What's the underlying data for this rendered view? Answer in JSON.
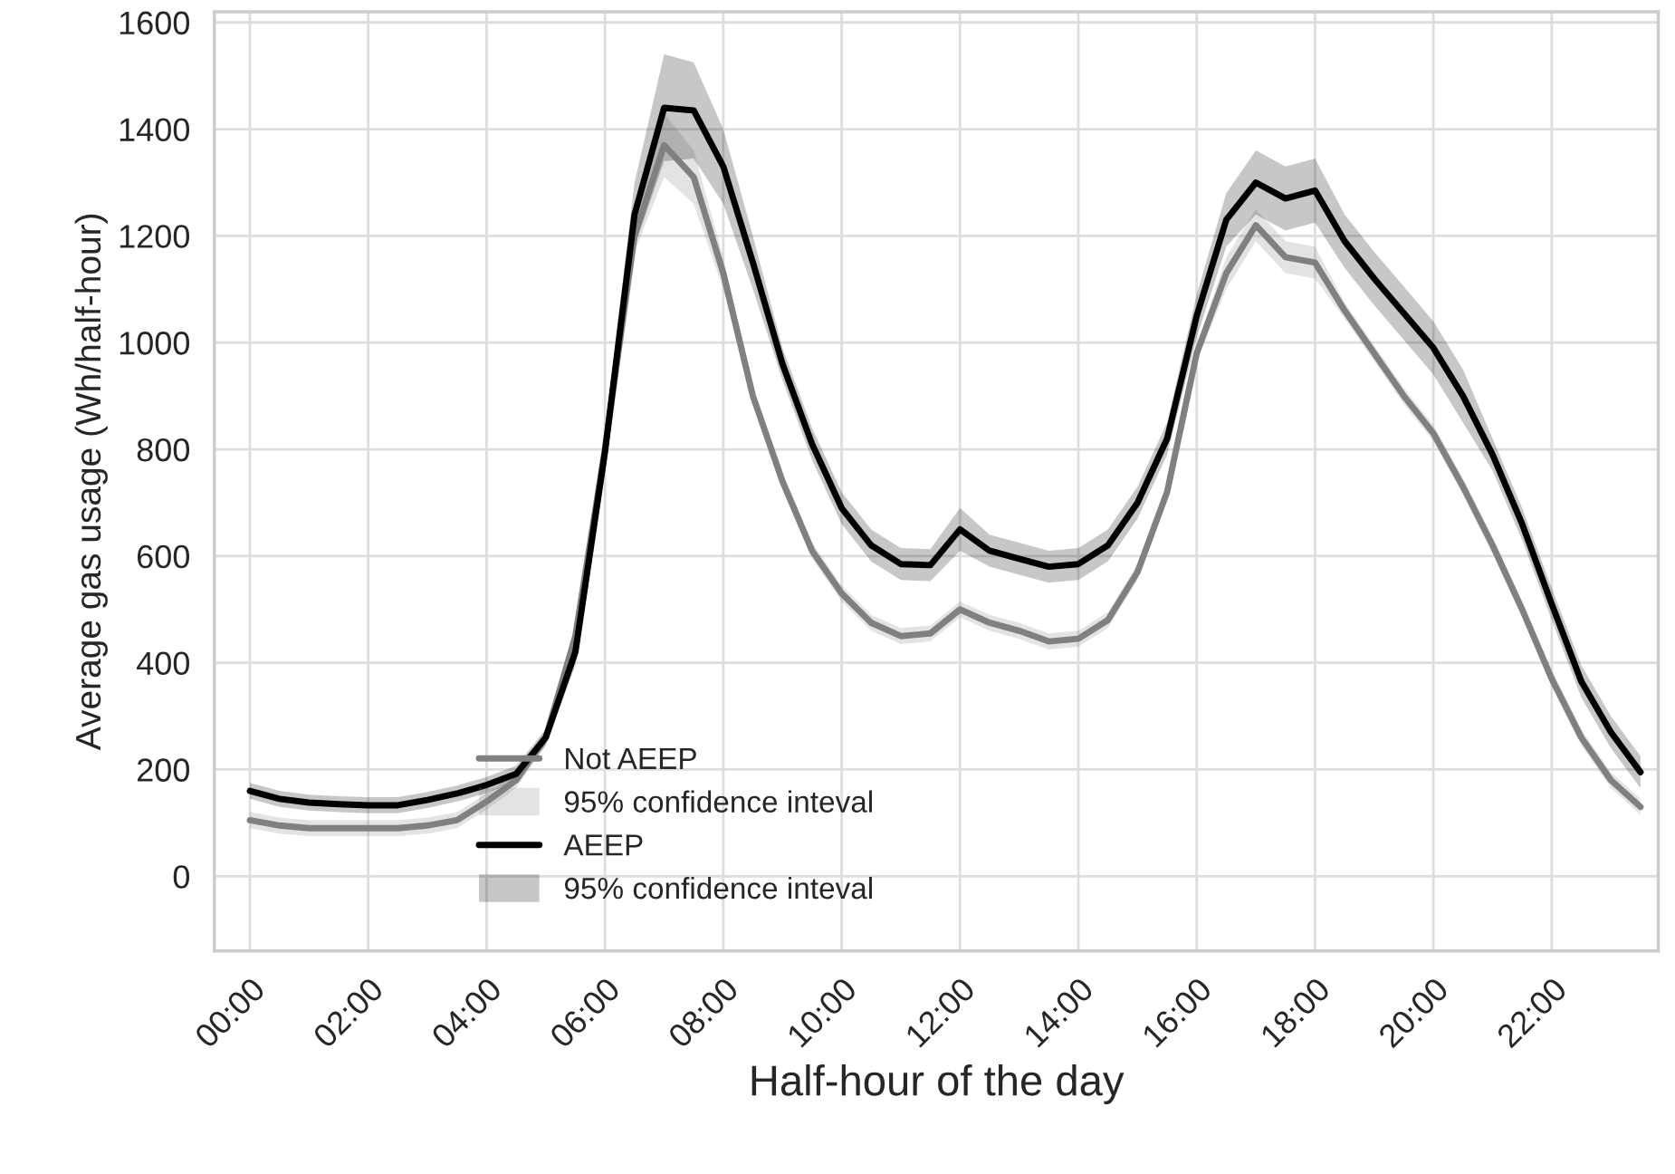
{
  "chart_data": {
    "type": "line",
    "xlabel": "Half-hour of the day",
    "ylabel": "Average gas usage (Wh/half-hour)",
    "annotations": [
      "95% confidence inteval",
      "95% confidence inteval"
    ],
    "x": [
      0,
      0.5,
      1,
      1.5,
      2,
      2.5,
      3,
      3.5,
      4,
      4.5,
      5,
      5.5,
      6,
      6.5,
      7,
      7.5,
      8,
      8.5,
      9,
      9.5,
      10,
      10.5,
      11,
      11.5,
      12,
      12.5,
      13,
      13.5,
      14,
      14.5,
      15,
      15.5,
      16,
      16.5,
      17,
      17.5,
      18,
      18.5,
      19,
      19.5,
      20,
      20.5,
      21,
      21.5,
      22,
      22.5,
      23,
      23.5
    ],
    "xlim": [
      -0.6,
      23.8
    ],
    "xticks": [
      {
        "value": 0,
        "label": "00:00"
      },
      {
        "value": 2,
        "label": "02:00"
      },
      {
        "value": 4,
        "label": "04:00"
      },
      {
        "value": 6,
        "label": "06:00"
      },
      {
        "value": 8,
        "label": "08:00"
      },
      {
        "value": 10,
        "label": "10:00"
      },
      {
        "value": 12,
        "label": "12:00"
      },
      {
        "value": 14,
        "label": "14:00"
      },
      {
        "value": 16,
        "label": "16:00"
      },
      {
        "value": 18,
        "label": "18:00"
      },
      {
        "value": 20,
        "label": "20:00"
      },
      {
        "value": 22,
        "label": "22:00"
      }
    ],
    "ylim": [
      -140,
      1620
    ],
    "yticks": [
      0,
      200,
      400,
      600,
      800,
      1000,
      1200,
      1400,
      1600
    ],
    "grid": true,
    "legend": "bottom",
    "line_style": "solid",
    "marker": "none",
    "series": [
      {
        "name": "Not AEEP",
        "color": "#808080",
        "values": [
          105,
          95,
          90,
          90,
          90,
          90,
          95,
          105,
          140,
          180,
          260,
          450,
          800,
          1200,
          1370,
          1310,
          1130,
          900,
          740,
          610,
          530,
          475,
          450,
          455,
          500,
          475,
          460,
          440,
          445,
          480,
          570,
          720,
          980,
          1130,
          1220,
          1160,
          1150,
          1060,
          980,
          900,
          830,
          730,
          620,
          500,
          370,
          260,
          180,
          130
        ],
        "lower": [
          90,
          80,
          75,
          75,
          75,
          75,
          80,
          90,
          125,
          165,
          245,
          435,
          785,
          1170,
          1310,
          1260,
          1100,
          885,
          725,
          595,
          515,
          460,
          435,
          440,
          485,
          460,
          445,
          425,
          430,
          465,
          555,
          705,
          965,
          1100,
          1190,
          1130,
          1120,
          1045,
          965,
          885,
          815,
          715,
          605,
          485,
          355,
          245,
          165,
          115
        ],
        "upper": [
          120,
          110,
          105,
          105,
          105,
          105,
          110,
          120,
          155,
          195,
          275,
          465,
          815,
          1230,
          1430,
          1360,
          1160,
          915,
          755,
          625,
          545,
          490,
          465,
          470,
          515,
          490,
          475,
          455,
          460,
          495,
          585,
          735,
          995,
          1160,
          1250,
          1190,
          1180,
          1075,
          995,
          915,
          845,
          745,
          635,
          515,
          385,
          275,
          195,
          145
        ]
      },
      {
        "name": "AEEP",
        "color": "#000000",
        "values": [
          160,
          145,
          138,
          135,
          133,
          133,
          143,
          155,
          171,
          192,
          260,
          420,
          795,
          1240,
          1440,
          1435,
          1330,
          1150,
          960,
          810,
          690,
          620,
          585,
          583,
          650,
          610,
          595,
          580,
          585,
          620,
          700,
          820,
          1050,
          1230,
          1300,
          1270,
          1285,
          1190,
          1120,
          1055,
          990,
          900,
          790,
          660,
          510,
          365,
          270,
          195
        ],
        "lower": [
          145,
          130,
          123,
          120,
          118,
          118,
          128,
          140,
          156,
          177,
          245,
          395,
          755,
          1180,
          1340,
          1345,
          1260,
          1100,
          930,
          780,
          660,
          590,
          555,
          553,
          610,
          580,
          565,
          550,
          555,
          590,
          670,
          790,
          1010,
          1180,
          1240,
          1210,
          1225,
          1140,
          1070,
          1005,
          940,
          850,
          760,
          630,
          480,
          335,
          240,
          165
        ],
        "upper": [
          175,
          160,
          153,
          150,
          148,
          148,
          158,
          170,
          186,
          207,
          275,
          445,
          835,
          1300,
          1540,
          1525,
          1400,
          1200,
          990,
          840,
          720,
          650,
          615,
          613,
          690,
          640,
          625,
          610,
          615,
          650,
          730,
          850,
          1090,
          1280,
          1360,
          1330,
          1345,
          1240,
          1170,
          1105,
          1040,
          950,
          820,
          690,
          540,
          395,
          300,
          225
        ]
      }
    ]
  }
}
